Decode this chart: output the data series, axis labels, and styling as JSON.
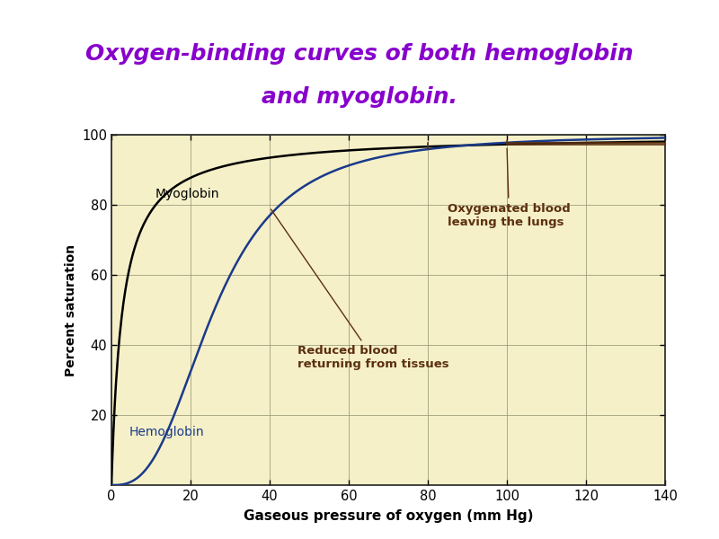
{
  "title_line1": "Oxygen-binding curves of both hemoglobin",
  "title_line2": "and myoglobin.",
  "title_color": "#8800CC",
  "title_fontsize": 18,
  "xlabel": "Gaseous pressure of oxygen (mm Hg)",
  "ylabel": "Percent saturation",
  "xlim": [
    0,
    140
  ],
  "ylim": [
    0,
    100
  ],
  "xticks": [
    0,
    20,
    40,
    60,
    80,
    100,
    120,
    140
  ],
  "yticks": [
    20,
    40,
    60,
    80,
    100
  ],
  "myoglobin_color": "#000000",
  "hemoglobin_color": "#1a3a8a",
  "annotation_color": "#5C3010",
  "bg_color": "#F5F0C8",
  "outer_bg": "#FFFFFF",
  "plot_bg": "#F0EAA0",
  "grid_color": "#999977",
  "label_myoglobin": "Myoglobin",
  "label_hemoglobin": "Hemoglobin",
  "label_oxygenated": "Oxygenated blood\nleaving the lungs",
  "label_reduced": "Reduced blood\nreturning from tissues",
  "myoglobin_p50": 2.8,
  "hemoglobin_p50": 26,
  "hemoglobin_n": 2.8
}
